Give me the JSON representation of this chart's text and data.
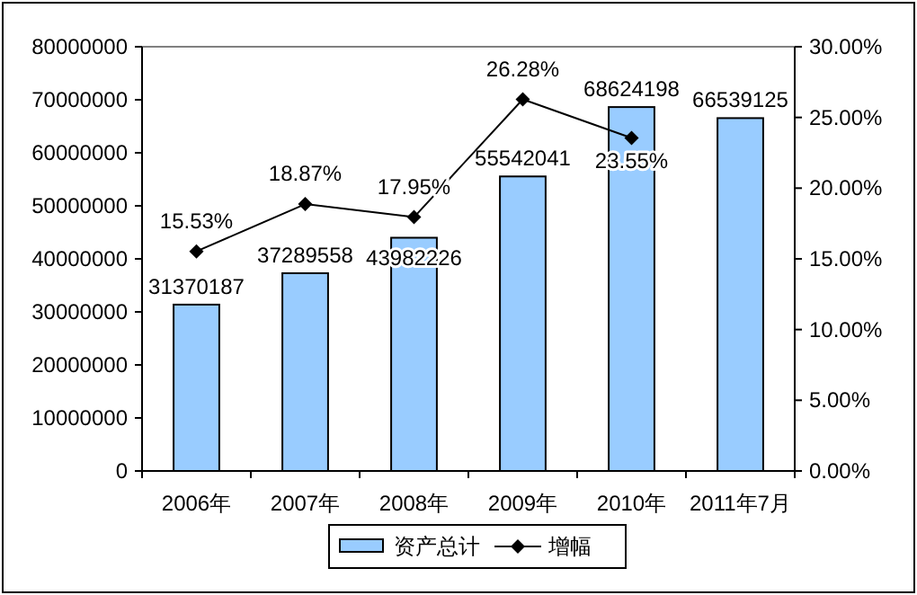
{
  "chart_data": {
    "type": "bar",
    "categories": [
      "2006年",
      "2007年",
      "2008年",
      "2009年",
      "2010年",
      "2011年7月"
    ],
    "series": [
      {
        "name": "资产总计",
        "color": "#99ccff",
        "values": [
          31370187,
          37289558,
          43982226,
          55542041,
          68624198,
          66539125
        ]
      },
      {
        "name": "增幅",
        "type": "line",
        "axis": "y2",
        "color": "#000000",
        "marker": "diamond",
        "values": [
          15.53,
          18.87,
          17.95,
          26.28,
          23.55,
          null
        ],
        "value_labels": [
          "15.53%",
          "18.87%",
          "17.95%",
          "26.28%",
          "23.55%",
          null
        ]
      }
    ],
    "data_labels": true,
    "ylim": [
      0,
      80000000
    ],
    "yticks": [
      0,
      10000000,
      20000000,
      30000000,
      40000000,
      50000000,
      60000000,
      70000000,
      80000000
    ],
    "y2lim": [
      0,
      30
    ],
    "y2ticks": [
      {
        "value": 0,
        "label": "0.00%"
      },
      {
        "value": 5,
        "label": "5.00%"
      },
      {
        "value": 10,
        "label": "10.00%"
      },
      {
        "value": 15,
        "label": "15.00%"
      },
      {
        "value": 20,
        "label": "20.00%"
      },
      {
        "value": 25,
        "label": "25.00%"
      },
      {
        "value": 30,
        "label": "30.00%"
      }
    ],
    "legend": "bottom"
  }
}
